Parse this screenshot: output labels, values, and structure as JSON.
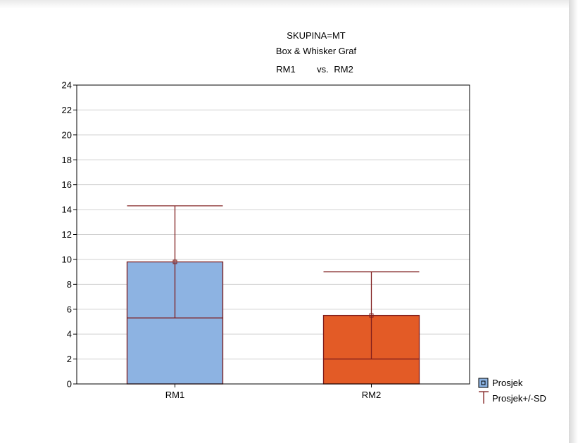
{
  "chart_data": {
    "type": "box",
    "title_lines": [
      "SKUPINA=MT",
      "Box & Whisker Graf"
    ],
    "comparison_left": "RM1",
    "comparison_sep": "vs.",
    "comparison_right": "RM2",
    "categories": [
      "RM1",
      "RM2"
    ],
    "mean": [
      9.8,
      5.5
    ],
    "sd": [
      4.5,
      3.5
    ],
    "box_colors": [
      "#8db3e2",
      "#e35b26"
    ],
    "ylim": [
      0,
      24
    ],
    "yticks": [
      "0",
      "2",
      "4",
      "6",
      "8",
      "10",
      "12",
      "14",
      "16",
      "18",
      "20",
      "22",
      "24"
    ],
    "grid": true,
    "legend": {
      "position": "bottom-right",
      "items": [
        {
          "label": "Prosjek",
          "marker": "box"
        },
        {
          "label": "Prosjek+/-SD",
          "marker": "whisker"
        }
      ]
    }
  }
}
